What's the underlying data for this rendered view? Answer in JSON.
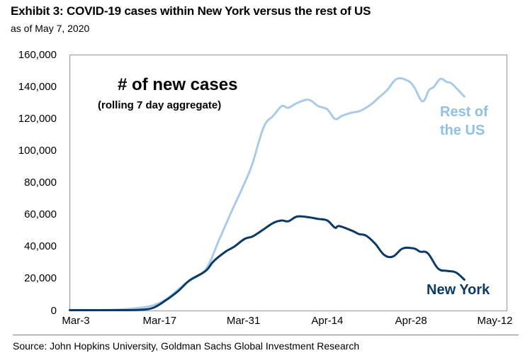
{
  "header": {
    "title": "Exhibit 3: COVID-19 cases within New York versus the rest of US",
    "subtitle": "as of May 7, 2020"
  },
  "footer": {
    "source": "Source: John Hopkins University, Goldman Sachs Global Investment Research"
  },
  "chart_data": {
    "type": "line",
    "title": "# of new cases",
    "subtitle": "(rolling 7 day aggregate)",
    "xlabel": "",
    "ylabel": "",
    "x_unit": "days since Mar-3",
    "xlim": [
      -1,
      70
    ],
    "ylim": [
      0,
      160000
    ],
    "yticks": [
      0,
      20000,
      40000,
      60000,
      80000,
      100000,
      120000,
      140000,
      160000
    ],
    "ytick_labels": [
      "0",
      "20,000",
      "40,000",
      "60,000",
      "80,000",
      "100,000",
      "120,000",
      "140,000",
      "160,000"
    ],
    "xticks": [
      0,
      14,
      28,
      42,
      56,
      70
    ],
    "xtick_labels": [
      "Mar-3",
      "Mar-17",
      "Mar-31",
      "Apr-14",
      "Apr-28",
      "May-12"
    ],
    "grid": false,
    "legend": "inline labels at line ends",
    "series": [
      {
        "name": "Rest of the US",
        "label_lines": [
          "Rest of",
          "the US"
        ],
        "color": "#a9cbe8",
        "label_color": "#8fc1e6",
        "x": [
          -1,
          4,
          8,
          11,
          13,
          15,
          17,
          19,
          21.7,
          24,
          26,
          28.2,
          29.5,
          31.4,
          33,
          34.4,
          35.5,
          37,
          38.9,
          40.5,
          42,
          43.3,
          44.5,
          46.2,
          47.5,
          49.3,
          50.5,
          52,
          53.6,
          55.4,
          56.5,
          57.9,
          59,
          59.8,
          60.9,
          62,
          62.8,
          64.9
        ],
        "y": [
          0,
          300,
          1000,
          2000,
          3500,
          7000,
          13000,
          19000,
          26000,
          45000,
          62000,
          80000,
          92000,
          115000,
          122000,
          128000,
          127000,
          130000,
          132000,
          128000,
          126000,
          120000,
          122000,
          124000,
          125000,
          129000,
          133000,
          138000,
          145000,
          144000,
          140000,
          131000,
          138000,
          140000,
          145000,
          143000,
          142000,
          134000
        ]
      },
      {
        "name": "New York",
        "label_lines": [
          "New York"
        ],
        "color": "#0c3a66",
        "label_color": "#0c3a66",
        "x": [
          -1,
          4,
          8,
          11,
          13,
          15,
          17,
          19,
          21.7,
          23,
          25,
          26.4,
          28.2,
          29.5,
          31,
          33,
          34.4,
          35.5,
          37,
          38.9,
          40.5,
          42,
          43.3,
          44,
          46.2,
          47.3,
          48.5,
          50,
          51.5,
          53,
          54.6,
          56.5,
          57.5,
          58.8,
          60.5,
          62,
          63.5,
          64.9
        ],
        "y": [
          0,
          100,
          300,
          700,
          2000,
          6500,
          12000,
          19000,
          25000,
          31000,
          37000,
          40000,
          45000,
          46500,
          50000,
          55000,
          56500,
          56000,
          59000,
          58500,
          57500,
          56500,
          52000,
          53000,
          50000,
          48000,
          47000,
          42000,
          35000,
          34000,
          39000,
          39000,
          37000,
          36000,
          26500,
          25000,
          24000,
          19500
        ]
      }
    ]
  }
}
